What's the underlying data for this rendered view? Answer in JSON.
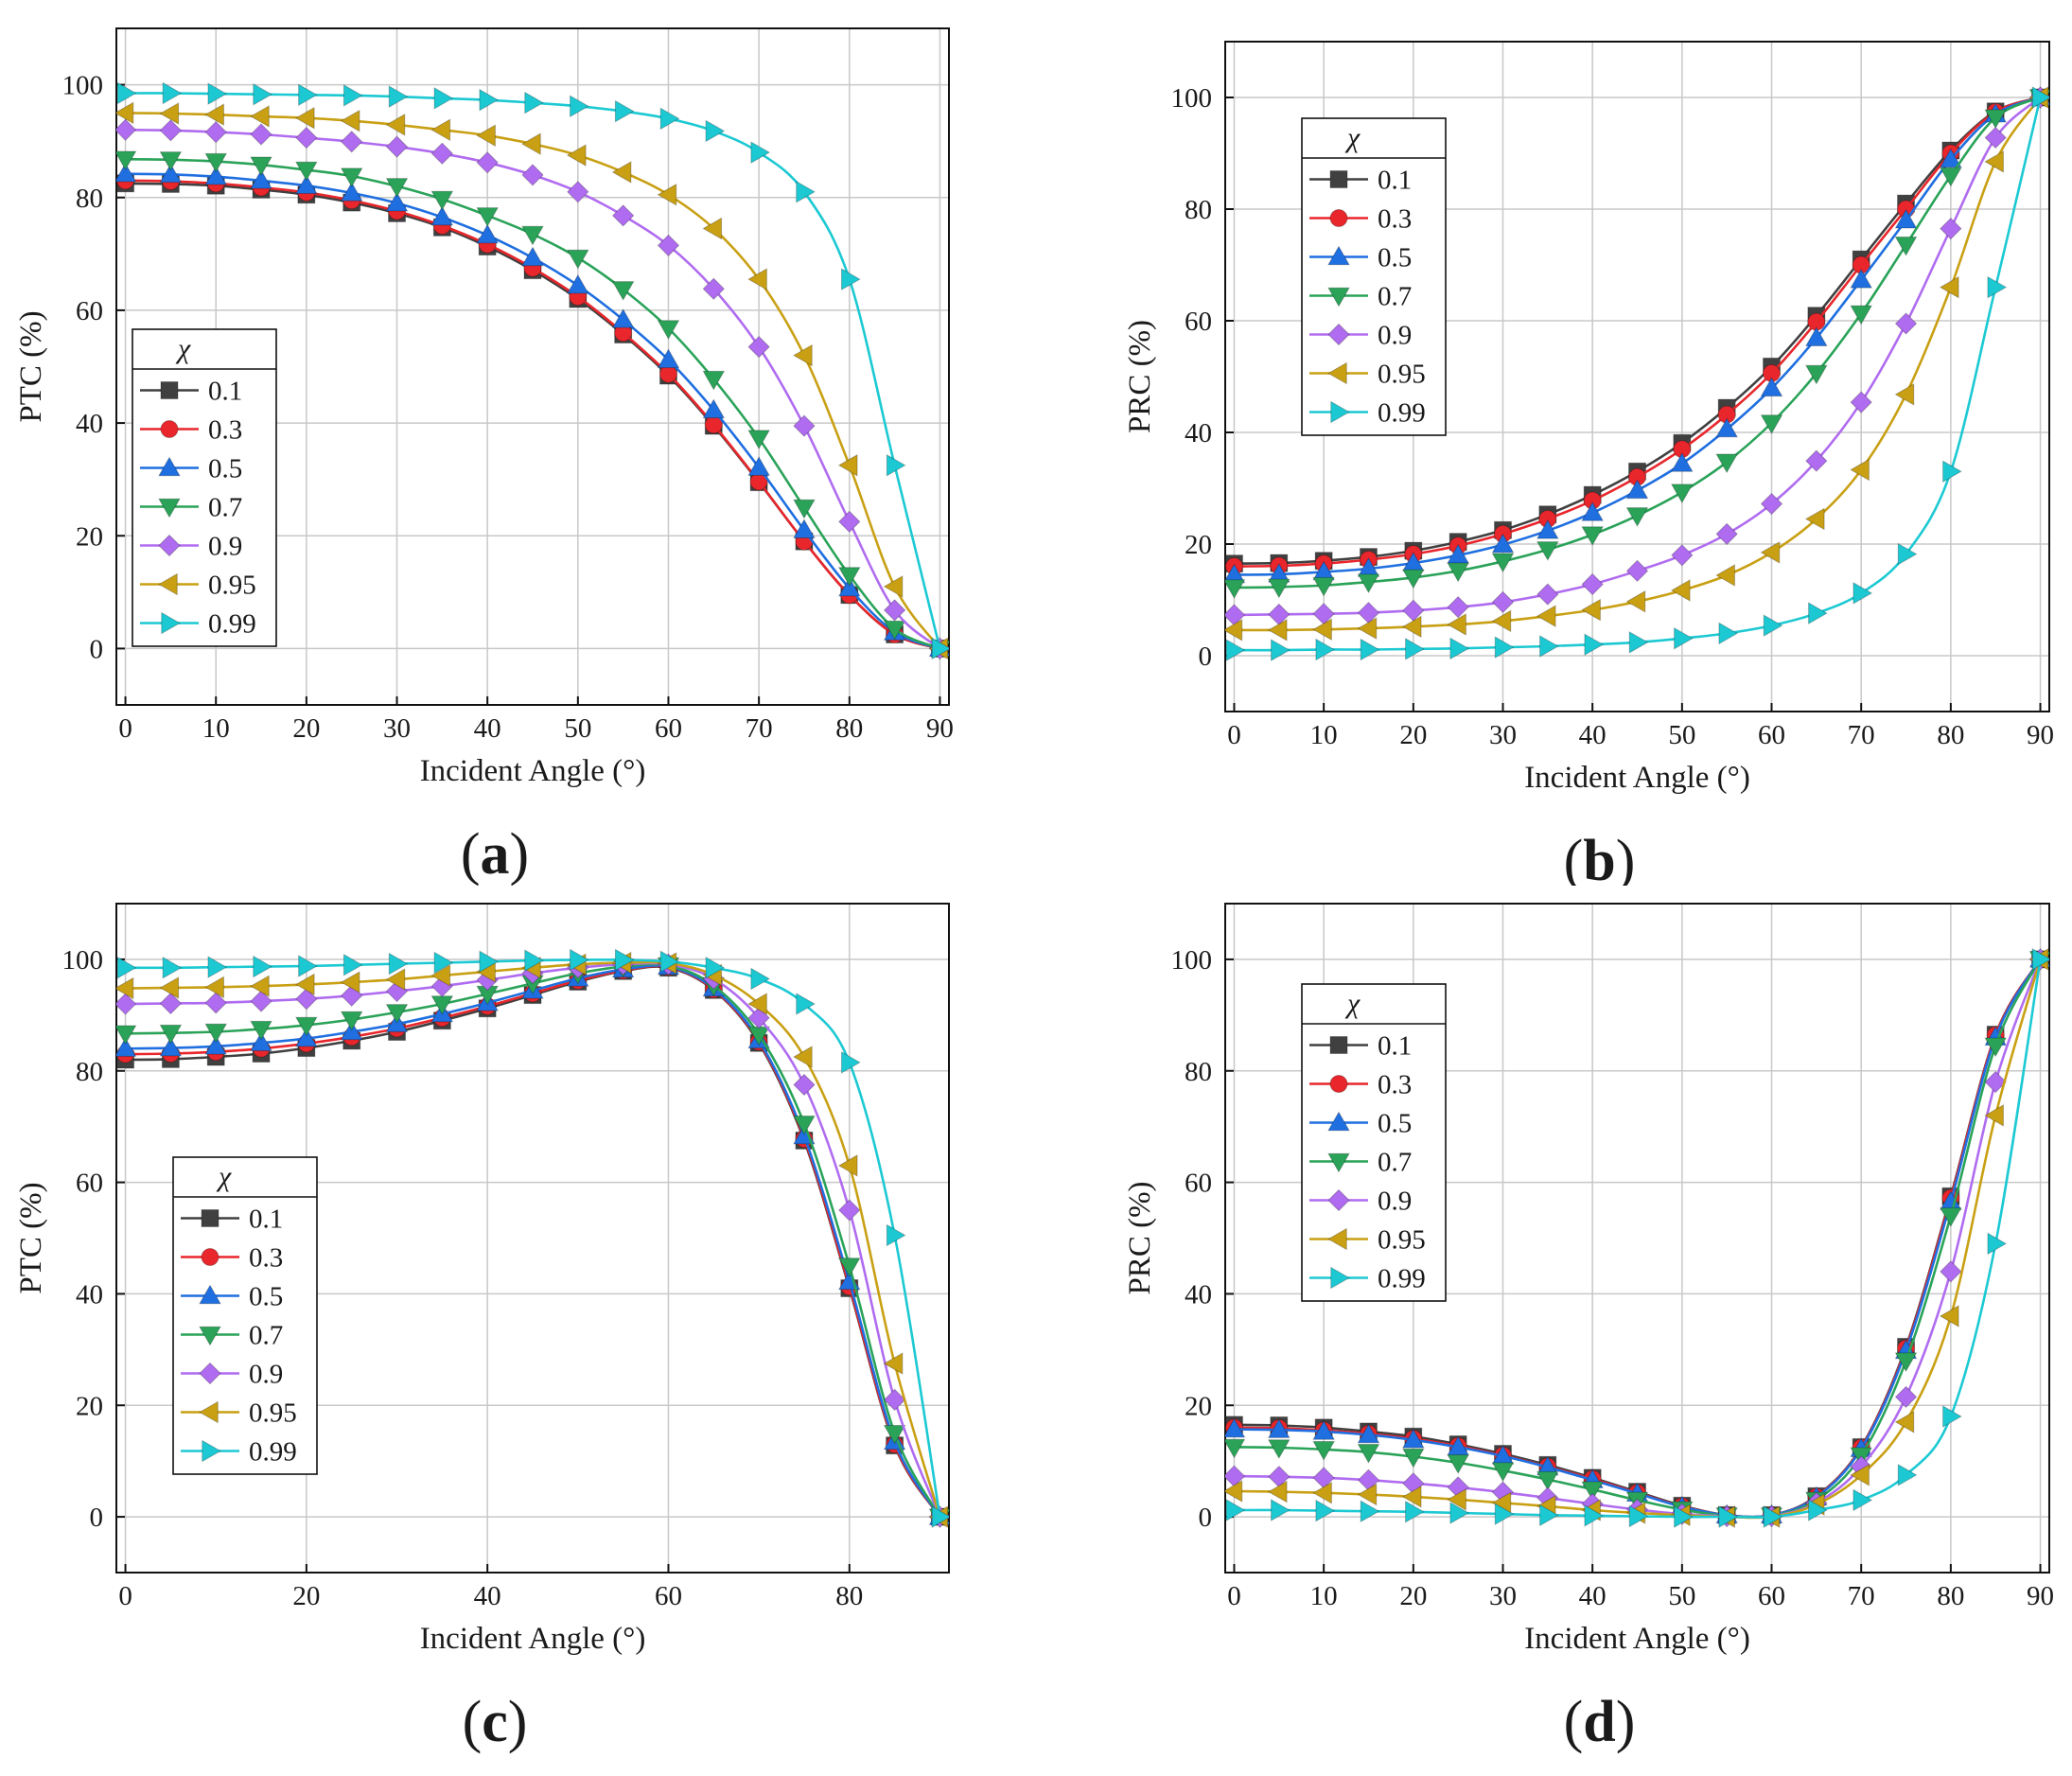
{
  "chart_data": [
    {
      "id": "a",
      "type": "line",
      "panel_label": "(a)",
      "panel_letter": "a",
      "xlabel": "Incident Angle (°)",
      "ylabel": "PTC (%)",
      "xlim": [
        -1,
        91
      ],
      "ylim": [
        -10,
        110
      ],
      "xticks": [
        0,
        10,
        20,
        30,
        40,
        50,
        60,
        70,
        80,
        90
      ],
      "yticks": [
        0,
        20,
        40,
        60,
        80,
        100
      ],
      "grid": true,
      "legend_position": "middle-left",
      "legend_title": "χ",
      "x": [
        0,
        5,
        10,
        15,
        20,
        25,
        30,
        35,
        40,
        45,
        50,
        55,
        60,
        65,
        70,
        75,
        80,
        85,
        90
      ],
      "series": [
        {
          "name": "0.1",
          "color": "#404040",
          "marker": "square",
          "values": [
            82.5,
            82.4,
            82.1,
            81.4,
            80.5,
            79.1,
            77.2,
            74.7,
            71.3,
            67.1,
            62.0,
            55.7,
            48.4,
            39.5,
            29.5,
            19.0,
            9.5,
            2.5,
            0
          ]
        },
        {
          "name": "0.3",
          "color": "#e8262b",
          "marker": "circle",
          "values": [
            83.0,
            82.9,
            82.5,
            81.8,
            80.9,
            79.5,
            77.6,
            75.0,
            71.7,
            67.5,
            62.4,
            56.0,
            48.7,
            39.7,
            29.6,
            19.0,
            9.5,
            2.5,
            0
          ]
        },
        {
          "name": "0.5",
          "color": "#1f6fe0",
          "marker": "triangle-up",
          "values": [
            84.2,
            84.1,
            83.7,
            83.0,
            82.1,
            80.8,
            79.0,
            76.5,
            73.3,
            69.3,
            64.4,
            58.3,
            51.2,
            42.3,
            32.1,
            21.0,
            10.7,
            2.9,
            0
          ]
        },
        {
          "name": "0.7",
          "color": "#2aa359",
          "marker": "triangle-down",
          "values": [
            86.8,
            86.7,
            86.4,
            85.8,
            84.9,
            83.8,
            82.0,
            79.7,
            76.8,
            73.5,
            69.3,
            63.7,
            56.8,
            47.8,
            37.3,
            25.0,
            13.0,
            3.5,
            0
          ]
        },
        {
          "name": "0.9",
          "color": "#b06cf0",
          "marker": "diamond",
          "values": [
            92.0,
            91.9,
            91.6,
            91.2,
            90.6,
            89.9,
            89.0,
            87.8,
            86.2,
            84.0,
            81.0,
            76.8,
            71.5,
            63.8,
            53.5,
            39.5,
            22.5,
            6.8,
            0
          ]
        },
        {
          "name": "0.95",
          "color": "#c9a014",
          "marker": "triangle-left",
          "values": [
            95.0,
            94.9,
            94.7,
            94.4,
            94.1,
            93.6,
            92.9,
            92.0,
            91.0,
            89.5,
            87.5,
            84.5,
            80.5,
            74.5,
            65.5,
            52.0,
            32.5,
            11.0,
            0
          ]
        },
        {
          "name": "0.99",
          "color": "#1cc9d3",
          "marker": "triangle-right",
          "values": [
            98.5,
            98.5,
            98.4,
            98.3,
            98.2,
            98.1,
            97.9,
            97.6,
            97.3,
            96.8,
            96.2,
            95.3,
            94.0,
            91.8,
            88.0,
            81.0,
            65.5,
            32.5,
            0
          ]
        }
      ]
    },
    {
      "id": "b",
      "type": "line",
      "panel_label": "(b)",
      "panel_letter": "b",
      "xlabel": "Incident Angle (°)",
      "ylabel": "PRC (%)",
      "xlim": [
        -1,
        91
      ],
      "ylim": [
        -10,
        110
      ],
      "xticks": [
        0,
        10,
        20,
        30,
        40,
        50,
        60,
        70,
        80,
        90
      ],
      "yticks": [
        0,
        20,
        40,
        60,
        80,
        100
      ],
      "grid": true,
      "legend_position": "top-left",
      "legend_title": "χ",
      "x": [
        0,
        5,
        10,
        15,
        20,
        25,
        30,
        35,
        40,
        45,
        50,
        55,
        60,
        65,
        70,
        75,
        80,
        85,
        90
      ],
      "series": [
        {
          "name": "0.1",
          "color": "#404040",
          "marker": "square",
          "values": [
            16.5,
            16.6,
            17.0,
            17.7,
            18.8,
            20.4,
            22.5,
            25.3,
            28.8,
            33.0,
            38.1,
            44.4,
            51.8,
            60.9,
            71.0,
            81.0,
            90.5,
            97.5,
            100
          ]
        },
        {
          "name": "0.3",
          "color": "#e8262b",
          "marker": "circle",
          "values": [
            16.0,
            16.1,
            16.5,
            17.2,
            18.2,
            19.7,
            21.8,
            24.5,
            27.8,
            32.0,
            37.0,
            43.2,
            50.6,
            59.8,
            70.0,
            80.0,
            90.0,
            97.4,
            100
          ]
        },
        {
          "name": "0.5",
          "color": "#1f6fe0",
          "marker": "triangle-up",
          "values": [
            14.5,
            14.6,
            15.0,
            15.6,
            16.6,
            18.0,
            19.9,
            22.4,
            25.6,
            29.6,
            34.4,
            40.6,
            47.9,
            56.9,
            67.3,
            78.0,
            88.9,
            97.0,
            100
          ]
        },
        {
          "name": "0.7",
          "color": "#2aa359",
          "marker": "triangle-down",
          "values": [
            12.2,
            12.3,
            12.6,
            13.2,
            14.0,
            15.2,
            16.9,
            19.0,
            21.7,
            25.1,
            29.3,
            34.7,
            41.7,
            50.6,
            61.3,
            73.6,
            86.0,
            96.4,
            100
          ]
        },
        {
          "name": "0.9",
          "color": "#b06cf0",
          "marker": "diamond",
          "values": [
            7.3,
            7.4,
            7.5,
            7.7,
            8.1,
            8.7,
            9.6,
            11.0,
            12.8,
            15.2,
            18.0,
            21.8,
            27.2,
            34.9,
            45.4,
            59.5,
            76.5,
            92.8,
            100
          ]
        },
        {
          "name": "0.95",
          "color": "#c9a014",
          "marker": "triangle-left",
          "values": [
            4.6,
            4.6,
            4.7,
            4.9,
            5.2,
            5.6,
            6.2,
            7.1,
            8.2,
            9.7,
            11.7,
            14.4,
            18.5,
            24.5,
            33.3,
            46.8,
            66.0,
            88.5,
            100
          ]
        },
        {
          "name": "0.99",
          "color": "#1cc9d3",
          "marker": "triangle-right",
          "values": [
            1.0,
            1.0,
            1.1,
            1.1,
            1.2,
            1.3,
            1.5,
            1.7,
            2.0,
            2.4,
            3.1,
            4.0,
            5.4,
            7.6,
            11.2,
            18.2,
            33.0,
            66.0,
            100
          ]
        }
      ]
    },
    {
      "id": "c",
      "type": "line",
      "panel_label": "(c)",
      "panel_letter": "c",
      "xlabel": "Incident Angle (°)",
      "ylabel": "PTC (%)",
      "xlim": [
        -1,
        91
      ],
      "ylim": [
        -10,
        110
      ],
      "xticks": [
        0,
        20,
        40,
        60,
        80
      ],
      "yticks": [
        0,
        20,
        40,
        60,
        80,
        100
      ],
      "grid": true,
      "legend_position": "lower-left",
      "legend_title": "χ",
      "x": [
        0,
        5,
        10,
        15,
        20,
        25,
        30,
        35,
        40,
        45,
        50,
        55,
        60,
        65,
        70,
        75,
        80,
        85,
        90
      ],
      "series": [
        {
          "name": "0.1",
          "color": "#404040",
          "marker": "square",
          "values": [
            82.0,
            82.1,
            82.5,
            83.1,
            84.1,
            85.4,
            87.0,
            89.0,
            91.2,
            93.6,
            96.0,
            97.9,
            98.5,
            94.5,
            85.0,
            67.5,
            41.0,
            12.8,
            0
          ]
        },
        {
          "name": "0.3",
          "color": "#e8262b",
          "marker": "circle",
          "values": [
            83.0,
            83.1,
            83.4,
            84.0,
            84.9,
            86.1,
            87.6,
            89.5,
            91.6,
            93.9,
            96.2,
            98.0,
            98.6,
            94.6,
            85.2,
            67.8,
            41.3,
            13.0,
            0
          ]
        },
        {
          "name": "0.5",
          "color": "#1f6fe0",
          "marker": "triangle-up",
          "values": [
            84.0,
            84.1,
            84.4,
            85.0,
            85.8,
            87.0,
            88.4,
            90.2,
            92.2,
            94.4,
            96.6,
            98.2,
            98.7,
            94.8,
            85.5,
            68.3,
            42.2,
            13.5,
            0
          ]
        },
        {
          "name": "0.7",
          "color": "#2aa359",
          "marker": "triangle-down",
          "values": [
            86.7,
            86.8,
            87.0,
            87.5,
            88.2,
            89.2,
            90.5,
            92.0,
            93.8,
            95.7,
            97.5,
            98.7,
            98.9,
            95.3,
            86.5,
            70.5,
            45.0,
            15.0,
            0
          ]
        },
        {
          "name": "0.9",
          "color": "#b06cf0",
          "marker": "diamond",
          "values": [
            92.0,
            92.1,
            92.2,
            92.5,
            92.9,
            93.5,
            94.3,
            95.2,
            96.3,
            97.5,
            98.5,
            99.1,
            99.1,
            96.5,
            89.5,
            77.5,
            55.0,
            21.0,
            0
          ]
        },
        {
          "name": "0.95",
          "color": "#c9a014",
          "marker": "triangle-left",
          "values": [
            94.8,
            94.9,
            95.0,
            95.2,
            95.5,
            95.9,
            96.4,
            97.1,
            97.8,
            98.5,
            99.1,
            99.4,
            99.3,
            97.2,
            92.0,
            82.5,
            63.0,
            27.5,
            0
          ]
        },
        {
          "name": "0.99",
          "color": "#1cc9d3",
          "marker": "triangle-right",
          "values": [
            98.5,
            98.5,
            98.6,
            98.7,
            98.8,
            99.0,
            99.2,
            99.4,
            99.6,
            99.8,
            99.9,
            99.9,
            99.6,
            98.5,
            96.5,
            92.0,
            81.5,
            50.5,
            0
          ]
        }
      ]
    },
    {
      "id": "d",
      "type": "line",
      "panel_label": "(d)",
      "panel_letter": "d",
      "xlabel": "Incident Angle (°)",
      "ylabel": "PRC (%)",
      "xlim": [
        -1,
        91
      ],
      "ylim": [
        -10,
        110
      ],
      "xticks": [
        0,
        10,
        20,
        30,
        40,
        50,
        60,
        70,
        80,
        90
      ],
      "yticks": [
        0,
        20,
        40,
        60,
        80,
        100
      ],
      "grid": true,
      "legend_position": "top-left",
      "legend_title": "χ",
      "x": [
        0,
        5,
        10,
        15,
        20,
        25,
        30,
        35,
        40,
        45,
        50,
        55,
        60,
        65,
        70,
        75,
        80,
        85,
        90
      ],
      "series": [
        {
          "name": "0.1",
          "color": "#404040",
          "marker": "square",
          "values": [
            16.5,
            16.4,
            16.0,
            15.3,
            14.4,
            13.0,
            11.3,
            9.3,
            7.0,
            4.5,
            2.0,
            0.3,
            0.3,
            3.7,
            12.5,
            30.5,
            57.5,
            86.5,
            100
          ]
        },
        {
          "name": "0.3",
          "color": "#e8262b",
          "marker": "circle",
          "values": [
            16.0,
            15.9,
            15.5,
            14.9,
            14.0,
            12.7,
            11.0,
            9.0,
            6.8,
            4.3,
            1.9,
            0.3,
            0.3,
            3.6,
            12.4,
            30.2,
            57.2,
            86.4,
            100
          ]
        },
        {
          "name": "0.5",
          "color": "#1f6fe0",
          "marker": "triangle-up",
          "values": [
            15.7,
            15.6,
            15.3,
            14.7,
            13.8,
            12.5,
            10.9,
            8.9,
            6.6,
            4.2,
            1.8,
            0.3,
            0.3,
            3.5,
            12.2,
            29.8,
            56.5,
            86.0,
            100
          ]
        },
        {
          "name": "0.7",
          "color": "#2aa359",
          "marker": "triangle-down",
          "values": [
            12.5,
            12.4,
            12.1,
            11.6,
            10.8,
            9.7,
            8.3,
            6.7,
            4.9,
            3.0,
            1.3,
            0.2,
            0.2,
            3.0,
            11.0,
            28.0,
            54.0,
            84.5,
            100
          ]
        },
        {
          "name": "0.9",
          "color": "#b06cf0",
          "marker": "diamond",
          "values": [
            7.3,
            7.2,
            7.0,
            6.6,
            6.0,
            5.3,
            4.4,
            3.4,
            2.3,
            1.3,
            0.5,
            0.1,
            0.1,
            2.5,
            9.0,
            21.5,
            44.0,
            78.0,
            100
          ]
        },
        {
          "name": "0.95",
          "color": "#c9a014",
          "marker": "triangle-left",
          "values": [
            4.6,
            4.5,
            4.3,
            4.0,
            3.6,
            3.1,
            2.5,
            1.9,
            1.2,
            0.7,
            0.3,
            0.0,
            0.0,
            2.2,
            7.5,
            17.0,
            36.0,
            72.0,
            100
          ]
        },
        {
          "name": "0.99",
          "color": "#1cc9d3",
          "marker": "triangle-right",
          "values": [
            1.2,
            1.2,
            1.1,
            1.0,
            0.9,
            0.7,
            0.5,
            0.3,
            0.2,
            0.1,
            0.0,
            0.0,
            0.0,
            1.2,
            3.0,
            7.5,
            18.0,
            49.0,
            100
          ]
        }
      ]
    }
  ]
}
